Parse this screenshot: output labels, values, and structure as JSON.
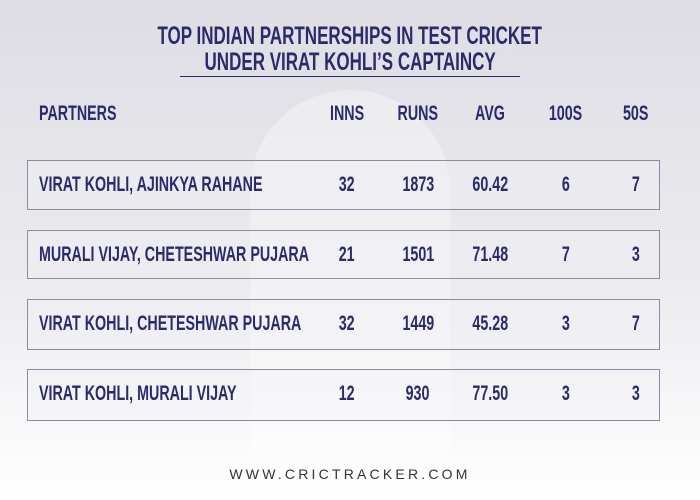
{
  "header": {
    "title_lines": [
      "TOP INDIAN PARTNERSHIPS IN TEST CRICKET",
      "UNDER VIRAT KOHLI’S CAPTAINCY"
    ]
  },
  "table": {
    "columns": [
      "PARTNERS",
      "INNS",
      "RUNS",
      "AVG",
      "100S",
      "50S"
    ],
    "rows": [
      [
        "VIRAT KOHLI, AJINKYA RAHANE",
        "32",
        "1873",
        "60.42",
        "6",
        "7"
      ],
      [
        "MURALI VIJAY, CHETESHWAR PUJARA",
        "21",
        "1501",
        "71.48",
        "7",
        "3"
      ],
      [
        "VIRAT KOHLI, CHETESHWAR PUJARA",
        "32",
        "1449",
        "45.28",
        "3",
        "7"
      ],
      [
        "VIRAT KOHLI, MURALI VIJAY",
        "12",
        "930",
        "77.50",
        "3",
        "3"
      ]
    ]
  },
  "footer": {
    "website": "WWW.CRICTRACKER.COM"
  }
}
